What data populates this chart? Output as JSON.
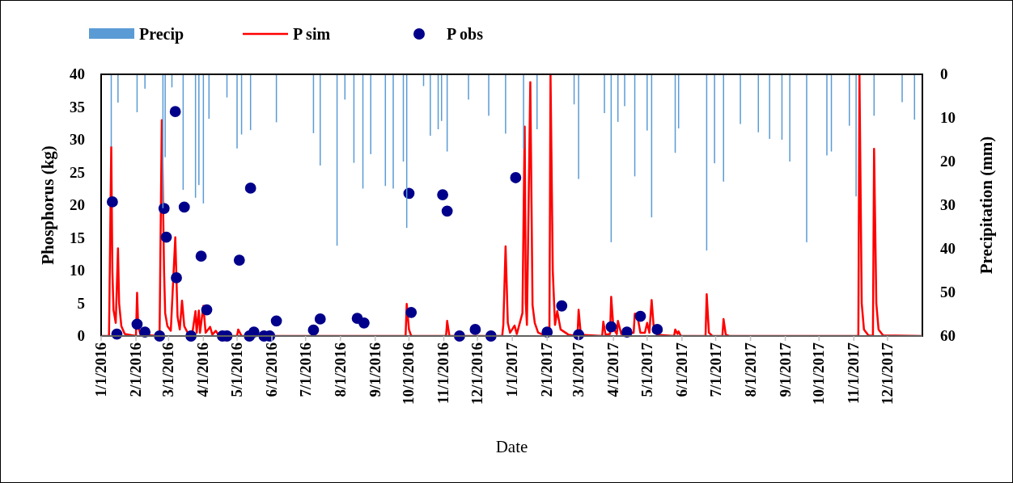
{
  "chart_data": {
    "type": "line",
    "xlabel": "Date",
    "ylabel": "Phosphorus (kg)",
    "y2label": "Precipitation (mm)",
    "legend": "top",
    "xlim": [
      "2016-01-01",
      "2018-01-01"
    ],
    "xticks": [
      {
        "value": "2016-01-01",
        "label": "1/1/2016"
      },
      {
        "value": "2016-02-01",
        "label": "2/1/2016"
      },
      {
        "value": "2016-03-01",
        "label": "3/1/2016"
      },
      {
        "value": "2016-04-01",
        "label": "4/1/2016"
      },
      {
        "value": "2016-05-01",
        "label": "5/1/2016"
      },
      {
        "value": "2016-06-01",
        "label": "6/1/2016"
      },
      {
        "value": "2016-07-01",
        "label": "7/1/2016"
      },
      {
        "value": "2016-08-01",
        "label": "8/1/2016"
      },
      {
        "value": "2016-09-01",
        "label": "9/1/2016"
      },
      {
        "value": "2016-10-01",
        "label": "10/1/2016"
      },
      {
        "value": "2016-11-01",
        "label": "11/1/2016"
      },
      {
        "value": "2016-12-01",
        "label": "12/1/2016"
      },
      {
        "value": "2017-01-01",
        "label": "1/1/2017"
      },
      {
        "value": "2017-02-01",
        "label": "2/1/2017"
      },
      {
        "value": "2017-03-01",
        "label": "3/1/2017"
      },
      {
        "value": "2017-04-01",
        "label": "4/1/2017"
      },
      {
        "value": "2017-05-01",
        "label": "5/1/2017"
      },
      {
        "value": "2017-06-01",
        "label": "6/1/2017"
      },
      {
        "value": "2017-07-01",
        "label": "7/1/2017"
      },
      {
        "value": "2017-08-01",
        "label": "8/1/2017"
      },
      {
        "value": "2017-09-01",
        "label": "9/1/2017"
      },
      {
        "value": "2017-10-01",
        "label": "10/1/2017"
      },
      {
        "value": "2017-11-01",
        "label": "11/1/2017"
      },
      {
        "value": "2017-12-01",
        "label": "12/1/2017"
      }
    ],
    "ylim": [
      0,
      40
    ],
    "yticks": [
      0,
      5,
      10,
      15,
      20,
      25,
      30,
      35,
      40
    ],
    "y2lim": [
      60,
      0
    ],
    "y2ticks": [
      0,
      10,
      20,
      30,
      40,
      50,
      60
    ],
    "series": [
      {
        "name": "Precip",
        "type": "bar",
        "axis": "y2",
        "color": "#5b9bd5",
        "x": [
          "2016-01-10",
          "2016-01-16",
          "2016-02-02",
          "2016-02-09",
          "2016-02-25",
          "2016-02-27",
          "2016-03-04",
          "2016-03-14",
          "2016-03-25",
          "2016-03-28",
          "2016-04-01",
          "2016-04-06",
          "2016-04-22",
          "2016-05-01",
          "2016-05-05",
          "2016-05-13",
          "2016-06-05",
          "2016-07-08",
          "2016-07-14",
          "2016-07-29",
          "2016-08-05",
          "2016-08-13",
          "2016-08-21",
          "2016-08-28",
          "2016-09-10",
          "2016-09-17",
          "2016-09-26",
          "2016-09-29",
          "2016-10-14",
          "2016-10-20",
          "2016-10-27",
          "2016-10-30",
          "2016-11-04",
          "2016-11-23",
          "2016-12-11",
          "2016-12-26",
          "2017-01-11",
          "2017-01-23",
          "2017-02-25",
          "2017-03-01",
          "2017-03-24",
          "2017-03-30",
          "2017-04-05",
          "2017-04-11",
          "2017-04-20",
          "2017-05-01",
          "2017-05-05",
          "2017-05-26",
          "2017-05-29",
          "2017-06-23",
          "2017-06-30",
          "2017-07-08",
          "2017-07-23",
          "2017-08-08",
          "2017-08-18",
          "2017-08-29",
          "2017-09-05",
          "2017-09-20",
          "2017-10-08",
          "2017-10-12",
          "2017-10-28",
          "2017-11-03",
          "2017-11-19",
          "2017-12-14",
          "2017-12-25"
        ],
        "values": [
          16.6,
          6.5,
          8.7,
          3.3,
          30.7,
          19,
          3,
          26.5,
          28.3,
          25.4,
          29.6,
          10.2,
          5.3,
          17,
          13.8,
          12.8,
          11,
          13.5,
          20.9,
          39.3,
          5.8,
          20.3,
          26.2,
          18.3,
          25.6,
          26.2,
          20,
          35.2,
          2.7,
          14.1,
          12.6,
          10.7,
          17.7,
          5.8,
          9.5,
          13.6,
          17.1,
          12.6,
          6.9,
          24,
          8.9,
          38.5,
          10.9,
          7.3,
          23.4,
          12.9,
          32.8,
          18,
          12.4,
          40.4,
          20.4,
          24.6,
          11.4,
          13.3,
          14.8,
          15,
          20,
          38.5,
          18.6,
          17.7,
          11.8,
          28,
          9.5,
          6.4,
          10.4
        ]
      },
      {
        "name": "P sim",
        "color": "#ff0000",
        "x": [
          "2016-01-01",
          "2016-01-08",
          "2016-01-10",
          "2016-01-11",
          "2016-01-12",
          "2016-01-14",
          "2016-01-16",
          "2016-01-17",
          "2016-01-19",
          "2016-01-22",
          "2016-02-01",
          "2016-02-02",
          "2016-02-03",
          "2016-02-05",
          "2016-02-22",
          "2016-02-24",
          "2016-02-26",
          "2016-02-27",
          "2016-02-29",
          "2016-03-03",
          "2016-03-07",
          "2016-03-09",
          "2016-03-11",
          "2016-03-13",
          "2016-03-15",
          "2016-03-18",
          "2016-03-22",
          "2016-03-25",
          "2016-03-26",
          "2016-03-28",
          "2016-03-29",
          "2016-04-01",
          "2016-04-03",
          "2016-04-07",
          "2016-04-09",
          "2016-04-12",
          "2016-04-15",
          "2016-05-01",
          "2016-05-02",
          "2016-05-05",
          "2016-09-28",
          "2016-09-29",
          "2016-10-01",
          "2016-10-03",
          "2016-11-03",
          "2016-11-04",
          "2016-11-06",
          "2016-12-23",
          "2016-12-24",
          "2016-12-26",
          "2016-12-28",
          "2016-12-30",
          "2017-01-03",
          "2017-01-05",
          "2017-01-10",
          "2017-01-12",
          "2017-01-13",
          "2017-01-14",
          "2017-01-17",
          "2017-01-19",
          "2017-01-21",
          "2017-01-24",
          "2017-01-30",
          "2017-02-03",
          "2017-02-04",
          "2017-02-06",
          "2017-02-08",
          "2017-02-10",
          "2017-02-13",
          "2017-02-20",
          "2017-02-28",
          "2017-03-01",
          "2017-03-03",
          "2017-03-22",
          "2017-03-23",
          "2017-03-25",
          "2017-03-29",
          "2017-03-30",
          "2017-04-01",
          "2017-04-04",
          "2017-04-05",
          "2017-04-08",
          "2017-04-19",
          "2017-04-20",
          "2017-04-22",
          "2017-04-25",
          "2017-04-29",
          "2017-05-01",
          "2017-05-03",
          "2017-05-05",
          "2017-05-07",
          "2017-05-10",
          "2017-05-25",
          "2017-05-26",
          "2017-05-28",
          "2017-05-29",
          "2017-05-31",
          "2017-06-22",
          "2017-06-23",
          "2017-06-25",
          "2017-06-28",
          "2017-07-07",
          "2017-07-08",
          "2017-07-10",
          "2017-07-13",
          "2017-11-05",
          "2017-11-06",
          "2017-11-08",
          "2017-11-10",
          "2017-11-14",
          "2017-11-18",
          "2017-11-19",
          "2017-11-21",
          "2017-11-23",
          "2017-11-27",
          "2017-12-31"
        ],
        "values": [
          0,
          0,
          28.9,
          10,
          4,
          2,
          13.4,
          5,
          1.5,
          0.3,
          0,
          6.6,
          1.5,
          0.2,
          0,
          33,
          10,
          3.5,
          1.5,
          0.8,
          15.1,
          3,
          1,
          5.4,
          1.5,
          0.5,
          0.2,
          3.8,
          0.5,
          3.9,
          0.5,
          4.6,
          0.5,
          1.4,
          0.2,
          0.8,
          0,
          0,
          1,
          0,
          0,
          4.9,
          1,
          0,
          0,
          2.3,
          0,
          0,
          1.7,
          13.7,
          2,
          0.5,
          1.6,
          0.3,
          3.5,
          32,
          5,
          1.7,
          38.8,
          4.7,
          2,
          0.5,
          0.1,
          0,
          40,
          10,
          1.7,
          3.8,
          1,
          0.2,
          0,
          4,
          0.2,
          0,
          2.2,
          0.2,
          0.3,
          6,
          1.2,
          0.3,
          2.3,
          0.3,
          0.5,
          3.4,
          3.4,
          0.5,
          0.5,
          2,
          0.5,
          5.5,
          1,
          0.2,
          0,
          1,
          0.3,
          0.7,
          0,
          0,
          6.4,
          0.5,
          0,
          0,
          2.6,
          0.2,
          0,
          0,
          40,
          5,
          1,
          0.1,
          0,
          28.6,
          5,
          1,
          0.1,
          0
        ]
      },
      {
        "name": "P obs",
        "type": "scatter",
        "marker": "circle",
        "color": "#00008b",
        "x": [
          "2016-01-11",
          "2016-01-15",
          "2016-02-02",
          "2016-02-09",
          "2016-02-22",
          "2016-02-26",
          "2016-02-28",
          "2016-03-07",
          "2016-03-08",
          "2016-03-15",
          "2016-03-21",
          "2016-03-30",
          "2016-04-04",
          "2016-04-18",
          "2016-04-22",
          "2016-05-03",
          "2016-05-12",
          "2016-05-13",
          "2016-05-16",
          "2016-05-25",
          "2016-05-30",
          "2016-06-05",
          "2016-07-08",
          "2016-07-14",
          "2016-08-16",
          "2016-08-22",
          "2016-10-01",
          "2016-10-03",
          "2016-10-31",
          "2016-11-04",
          "2016-11-15",
          "2016-11-29",
          "2016-12-13",
          "2017-01-04",
          "2017-02-01",
          "2017-02-14",
          "2017-03-01",
          "2017-03-30",
          "2017-04-13",
          "2017-04-25",
          "2017-05-10"
        ],
        "values": [
          20.5,
          0.3,
          1.8,
          0.6,
          0,
          19.5,
          15.1,
          34.3,
          8.9,
          19.7,
          0,
          12.2,
          4,
          0,
          0,
          11.6,
          0,
          22.6,
          0.6,
          0,
          0,
          2.3,
          0.9,
          2.6,
          2.7,
          2,
          21.8,
          3.6,
          21.6,
          19.1,
          0,
          1,
          0,
          24.2,
          0.6,
          4.6,
          0.2,
          1.4,
          0.6,
          3,
          1
        ]
      }
    ]
  }
}
